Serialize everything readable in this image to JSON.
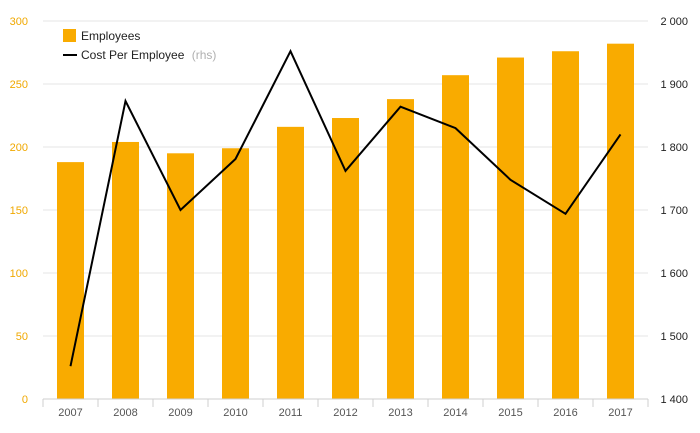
{
  "chart_data": {
    "type": "bar+line",
    "categories": [
      "2007",
      "2008",
      "2009",
      "2010",
      "2011",
      "2012",
      "2013",
      "2014",
      "2015",
      "2016",
      "2017"
    ],
    "series": [
      {
        "name": "Employees",
        "type": "bar",
        "axis": "left",
        "color": "#f9ab00",
        "values": [
          188,
          204,
          195,
          199,
          216,
          223,
          238,
          257,
          271,
          276,
          282
        ]
      },
      {
        "name": "Cost Per Employee",
        "name_suffix": "(rhs)",
        "type": "line",
        "axis": "right",
        "color": "#000000",
        "values": [
          1452,
          1873,
          1700,
          1781,
          1952,
          1762,
          1864,
          1830,
          1748,
          1694,
          1820
        ]
      }
    ],
    "left_axis": {
      "ylim": [
        0,
        300
      ],
      "ticks": [
        0,
        50,
        100,
        150,
        200,
        250,
        300
      ],
      "tick_color": "#f0a800"
    },
    "right_axis": {
      "ylim": [
        1400,
        2000
      ],
      "ticks": [
        1400,
        1500,
        1600,
        1700,
        1800,
        1900,
        2000
      ],
      "tick_labels": [
        "1 400",
        "1 500",
        "1 600",
        "1 700",
        "1 800",
        "1 900",
        "2 000"
      ]
    },
    "grid": true,
    "legend_position": "top-left"
  }
}
